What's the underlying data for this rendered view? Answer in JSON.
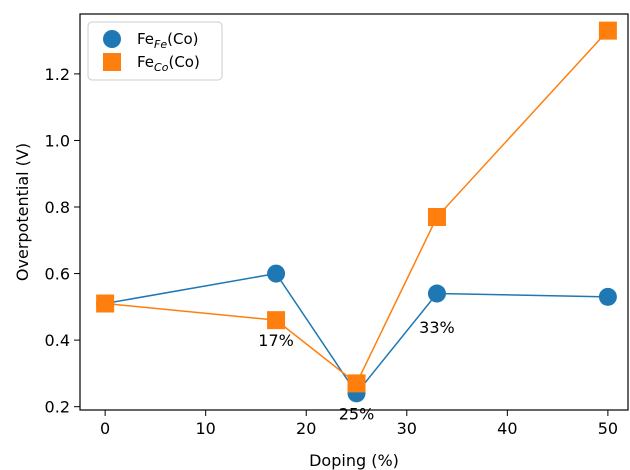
{
  "chart_data": {
    "type": "line",
    "xlabel": "Doping (%)",
    "ylabel": "Overpotential (V)",
    "xlim": [
      -2.5,
      52
    ],
    "ylim": [
      0.19,
      1.38
    ],
    "xticks": [
      0,
      10,
      20,
      30,
      40,
      50
    ],
    "yticks": [
      0.2,
      0.4,
      0.6,
      0.8,
      1.0,
      1.2
    ],
    "ytick_labels": [
      "0.2",
      "0.4",
      "0.6",
      "0.8",
      "1.0",
      "1.2"
    ],
    "legend_position": "upper-left",
    "series": [
      {
        "name_base": "Fe",
        "name_sub": "Fe",
        "name_suffix": "(Co)",
        "marker": "circle",
        "color": "#1f77b4",
        "x": [
          0,
          17,
          25,
          33,
          50
        ],
        "y": [
          0.51,
          0.6,
          0.24,
          0.54,
          0.53
        ]
      },
      {
        "name_base": "Fe",
        "name_sub": "Co",
        "name_suffix": "(Co)",
        "marker": "square",
        "color": "#ff7f0e",
        "x": [
          0,
          17,
          25,
          33,
          50
        ],
        "y": [
          0.51,
          0.46,
          0.27,
          0.77,
          1.33
        ]
      }
    ],
    "annotations": [
      {
        "text": "17%",
        "x": 17,
        "y": 0.4
      },
      {
        "text": "25%",
        "x": 25,
        "y": 0.18
      },
      {
        "text": "33%",
        "x": 33,
        "y": 0.44
      }
    ]
  }
}
